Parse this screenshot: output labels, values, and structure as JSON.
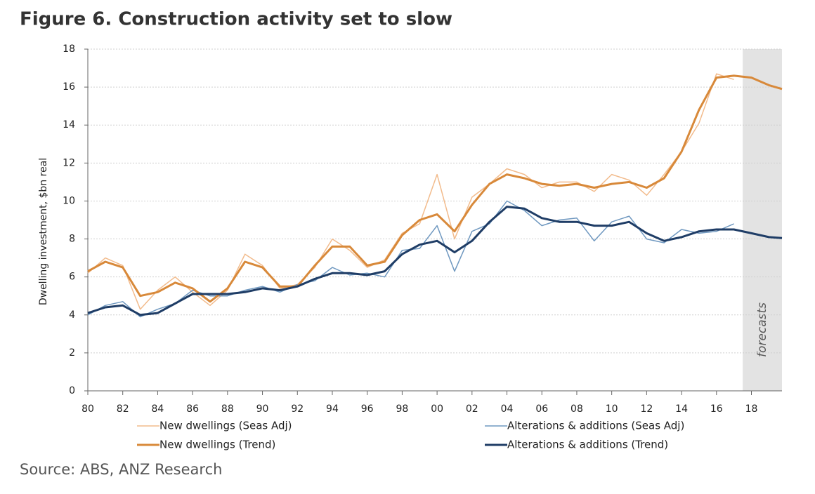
{
  "chart_data": {
    "type": "line",
    "title": "Figure 6. Construction activity set to slow",
    "ylabel": "Dwelling investment, $bn real",
    "note": "Source: ABS, ANZ Research",
    "annotation": "forecasts",
    "forecast_start": 2017.5,
    "x": [
      1980,
      1981,
      1982,
      1983,
      1984,
      1985,
      1986,
      1987,
      1988,
      1989,
      1990,
      1991,
      1992,
      1993,
      1994,
      1995,
      1996,
      1997,
      1998,
      1999,
      2000,
      2001,
      2002,
      2003,
      2004,
      2005,
      2006,
      2007,
      2008,
      2009,
      2010,
      2011,
      2012,
      2013,
      2014,
      2015,
      2016,
      2017,
      2018,
      2019,
      2019.75
    ],
    "series": [
      {
        "name": "New dwellings (Seas Adj)",
        "color": "#f2bb8c",
        "width": 1.5,
        "values": [
          6.2,
          7.0,
          6.6,
          4.3,
          5.3,
          6.0,
          5.2,
          4.5,
          5.3,
          7.2,
          6.6,
          5.4,
          5.6,
          6.5,
          8.0,
          7.4,
          6.5,
          6.9,
          8.3,
          8.8,
          11.4,
          8.0,
          10.2,
          10.9,
          11.7,
          11.4,
          10.7,
          11.0,
          11.0,
          10.5,
          11.4,
          11.1,
          10.3,
          11.4,
          12.6,
          14.1,
          16.7,
          16.4,
          null,
          null,
          null
        ]
      },
      {
        "name": "Alterations & additions (Seas Adj)",
        "color": "#6f98c0",
        "width": 1.5,
        "values": [
          4.0,
          4.5,
          4.7,
          3.9,
          4.3,
          4.6,
          5.3,
          5.0,
          5.0,
          5.3,
          5.5,
          5.2,
          5.6,
          5.8,
          6.5,
          6.1,
          6.2,
          6.0,
          7.4,
          7.5,
          8.7,
          6.3,
          8.4,
          8.8,
          10.0,
          9.5,
          8.7,
          9.0,
          9.1,
          7.9,
          8.9,
          9.2,
          8.0,
          7.8,
          8.5,
          8.3,
          8.4,
          8.8,
          null,
          null,
          null
        ]
      },
      {
        "name": "New dwellings (Trend)",
        "color": "#d8893a",
        "width": 3,
        "values": [
          6.3,
          6.8,
          6.5,
          5.0,
          5.2,
          5.7,
          5.4,
          4.7,
          5.4,
          6.8,
          6.5,
          5.5,
          5.5,
          6.6,
          7.6,
          7.6,
          6.6,
          6.8,
          8.2,
          9.0,
          9.3,
          8.4,
          9.8,
          10.9,
          11.4,
          11.2,
          10.9,
          10.8,
          10.9,
          10.7,
          10.9,
          11.0,
          10.7,
          11.2,
          12.6,
          14.8,
          16.5,
          16.6,
          16.5,
          16.1,
          15.9
        ]
      },
      {
        "name": "Alterations & additions (Trend)",
        "color": "#1f3d66",
        "width": 3,
        "values": [
          4.1,
          4.4,
          4.5,
          4.0,
          4.1,
          4.6,
          5.1,
          5.1,
          5.1,
          5.2,
          5.4,
          5.3,
          5.5,
          5.9,
          6.2,
          6.2,
          6.1,
          6.3,
          7.2,
          7.7,
          7.9,
          7.3,
          7.9,
          8.9,
          9.7,
          9.6,
          9.1,
          8.9,
          8.9,
          8.7,
          8.7,
          8.9,
          8.3,
          7.9,
          8.1,
          8.4,
          8.5,
          8.5,
          8.3,
          8.1,
          8.05
        ]
      }
    ],
    "legend_order": [
      0,
      2,
      1,
      3
    ],
    "xlim": [
      1980,
      2019.75
    ],
    "xticks": [
      {
        "value": 1980,
        "label": "80"
      },
      {
        "value": 1982,
        "label": "82"
      },
      {
        "value": 1984,
        "label": "84"
      },
      {
        "value": 1986,
        "label": "86"
      },
      {
        "value": 1988,
        "label": "88"
      },
      {
        "value": 1990,
        "label": "90"
      },
      {
        "value": 1992,
        "label": "92"
      },
      {
        "value": 1994,
        "label": "94"
      },
      {
        "value": 1996,
        "label": "96"
      },
      {
        "value": 1998,
        "label": "98"
      },
      {
        "value": 2000,
        "label": "00"
      },
      {
        "value": 2002,
        "label": "02"
      },
      {
        "value": 2004,
        "label": "04"
      },
      {
        "value": 2006,
        "label": "06"
      },
      {
        "value": 2008,
        "label": "08"
      },
      {
        "value": 2010,
        "label": "10"
      },
      {
        "value": 2012,
        "label": "12"
      },
      {
        "value": 2014,
        "label": "14"
      },
      {
        "value": 2016,
        "label": "16"
      },
      {
        "value": 2018,
        "label": "18"
      }
    ],
    "ylim": [
      0,
      18
    ],
    "yticks": [
      0,
      2,
      4,
      6,
      8,
      10,
      12,
      14,
      16,
      18
    ],
    "grid": true
  }
}
